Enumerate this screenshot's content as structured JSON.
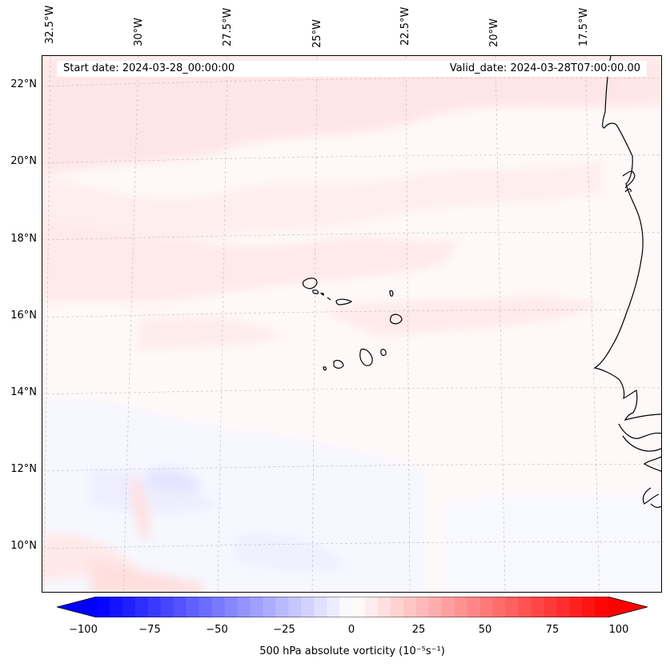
{
  "map": {
    "start_date": "Start date: 2024-03-28_00:00:00",
    "valid_date": "Valid_date: 2024-03-28T07:00:00.00",
    "lon_labels": [
      "32.5°W",
      "30°W",
      "27.5°W",
      "25°W",
      "22.5°W",
      "20°W",
      "17.5°W"
    ],
    "lat_labels": [
      "22°N",
      "20°N",
      "18°N",
      "16°N",
      "14°N",
      "12°N",
      "10°N"
    ],
    "gridlines": true,
    "field": "500 hPa absolute vorticity",
    "colormap": "bwr",
    "colors": {
      "negative": "#0000ff",
      "neutral": "#ffffff",
      "positive": "#ff0000",
      "coastline": "#000000"
    }
  },
  "colorbar": {
    "ticks": [
      "−100",
      "−75",
      "−50",
      "−25",
      "0",
      "25",
      "50",
      "75",
      "100"
    ],
    "min": -100,
    "max": 100,
    "levels": 40,
    "extend": "both",
    "label": "500 hPa absolute vorticity (10⁻⁵s⁻¹)"
  }
}
